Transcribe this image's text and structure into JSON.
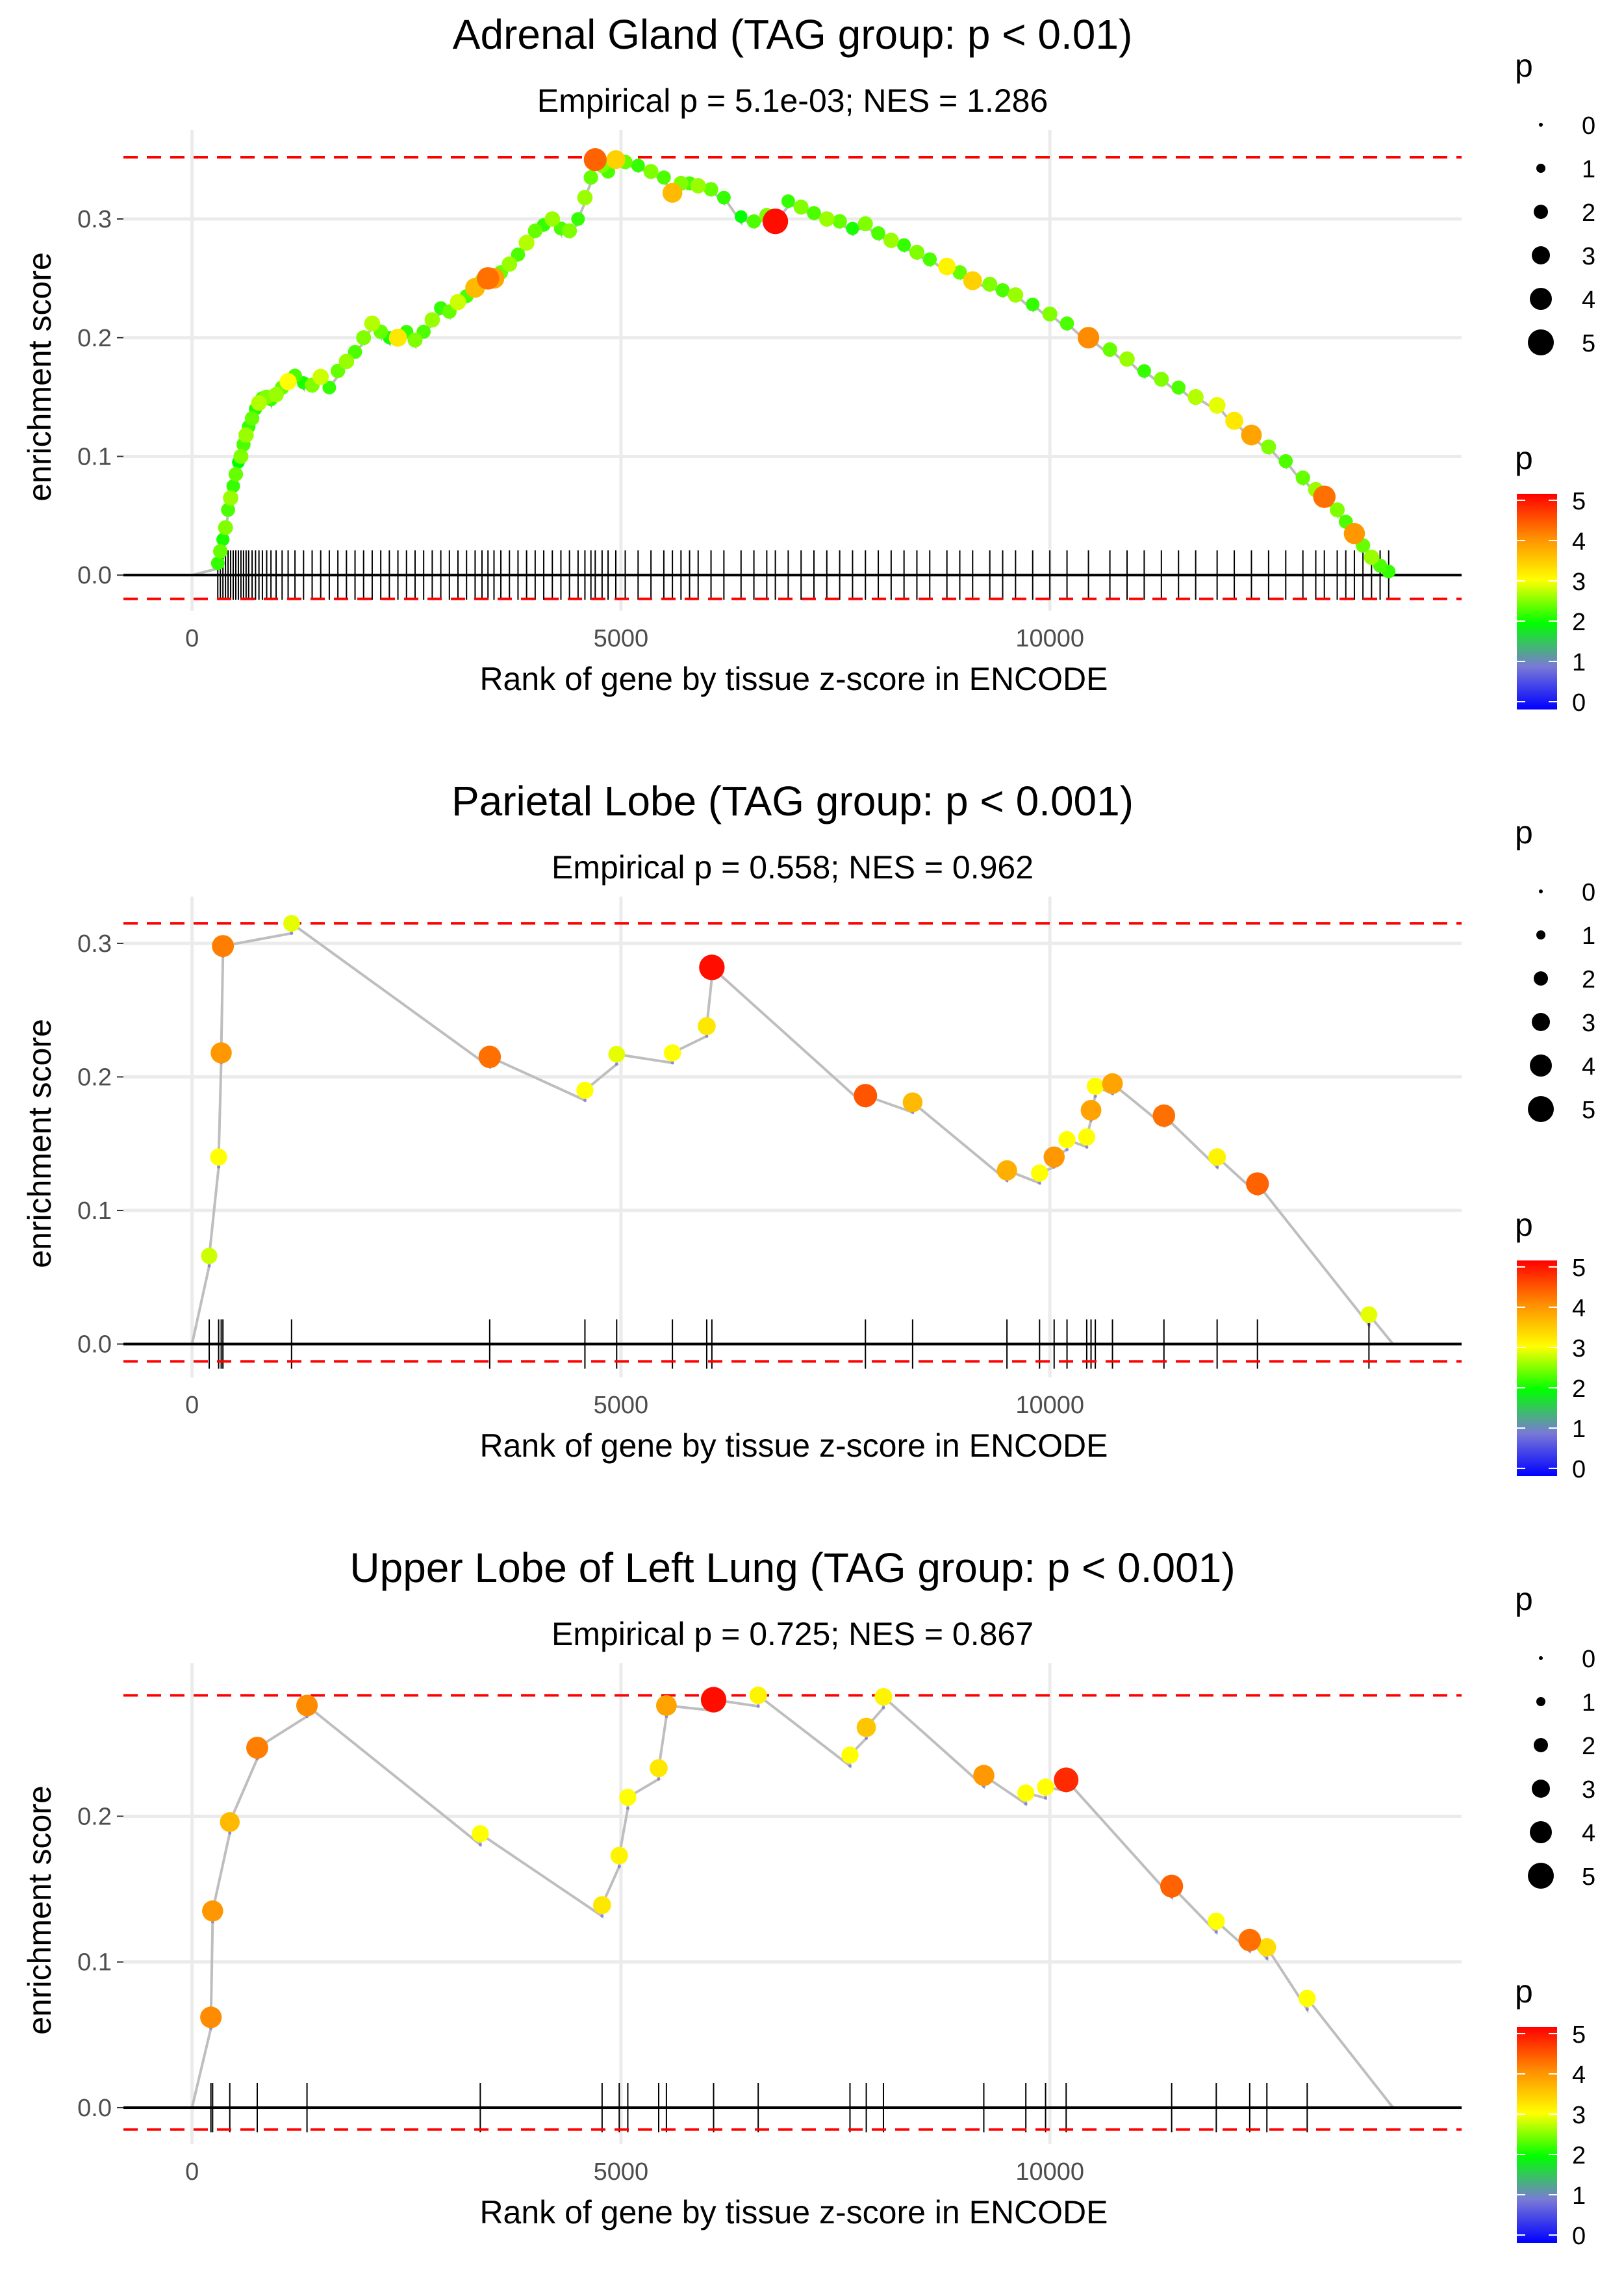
{
  "colors": {
    "grid": "#ebebeb",
    "axis_line": "#000000",
    "dashed": "#ff0000",
    "path": "#bebebe",
    "tick_text": "#4d4d4d",
    "text": "#000000",
    "gradient": [
      "#0000ff",
      "#00ff00",
      "#ffff00",
      "#ff0000"
    ]
  },
  "chart_data": [
    {
      "type": "scatter",
      "title": "Adrenal Gland (TAG group: p < 0.01)",
      "subtitle": "Empirical p = 5.1e-03; NES = 1.286",
      "xlabel": "Rank of gene by tissue z-score in ENCODE",
      "ylabel": "enrichment score",
      "xlim": [
        -800,
        14800
      ],
      "ylim": [
        -0.03,
        0.375
      ],
      "xticks": [
        0,
        5000,
        10000
      ],
      "xtick_labels": [
        "0",
        "5000",
        "10000"
      ],
      "yticks": [
        0.0,
        0.1,
        0.2,
        0.3
      ],
      "ytick_labels": [
        "0.0",
        "0.1",
        "0.2",
        "0.3"
      ],
      "x_end": 14000,
      "dashed_max": 0.352,
      "dashed_min": -0.02,
      "drop": 0.0045,
      "legend_size": {
        "title": "p",
        "labels": [
          "0",
          "1",
          "2",
          "3",
          "4",
          "5"
        ]
      },
      "legend_color": {
        "title": "p",
        "labels": [
          "0",
          "1",
          "2",
          "3",
          "4",
          "5"
        ]
      },
      "points": [
        {
          "x": 300,
          "y": 0.01,
          "p": 2.2
        },
        {
          "x": 330,
          "y": 0.02,
          "p": 2.4
        },
        {
          "x": 360,
          "y": 0.03,
          "p": 2.1
        },
        {
          "x": 390,
          "y": 0.04,
          "p": 2.5
        },
        {
          "x": 420,
          "y": 0.055,
          "p": 2.3
        },
        {
          "x": 450,
          "y": 0.065,
          "p": 2.6
        },
        {
          "x": 480,
          "y": 0.075,
          "p": 2.2
        },
        {
          "x": 510,
          "y": 0.085,
          "p": 2.4
        },
        {
          "x": 540,
          "y": 0.095,
          "p": 2.0
        },
        {
          "x": 570,
          "y": 0.1,
          "p": 2.5
        },
        {
          "x": 600,
          "y": 0.11,
          "p": 2.3
        },
        {
          "x": 630,
          "y": 0.118,
          "p": 2.6
        },
        {
          "x": 660,
          "y": 0.125,
          "p": 2.2
        },
        {
          "x": 700,
          "y": 0.132,
          "p": 2.4
        },
        {
          "x": 740,
          "y": 0.14,
          "p": 2.1
        },
        {
          "x": 780,
          "y": 0.145,
          "p": 2.7
        },
        {
          "x": 820,
          "y": 0.149,
          "p": 2.3
        },
        {
          "x": 870,
          "y": 0.15,
          "p": 2.5
        },
        {
          "x": 920,
          "y": 0.148,
          "p": 2.2
        },
        {
          "x": 980,
          "y": 0.152,
          "p": 2.6
        },
        {
          "x": 1050,
          "y": 0.158,
          "p": 2.4
        },
        {
          "x": 1120,
          "y": 0.163,
          "p": 3.0
        },
        {
          "x": 1200,
          "y": 0.168,
          "p": 2.3
        },
        {
          "x": 1300,
          "y": 0.162,
          "p": 2.1
        },
        {
          "x": 1400,
          "y": 0.16,
          "p": 2.5
        },
        {
          "x": 1500,
          "y": 0.167,
          "p": 2.8
        },
        {
          "x": 1600,
          "y": 0.158,
          "p": 2.2
        },
        {
          "x": 1700,
          "y": 0.172,
          "p": 2.4
        },
        {
          "x": 1800,
          "y": 0.18,
          "p": 2.6
        },
        {
          "x": 1900,
          "y": 0.188,
          "p": 2.3
        },
        {
          "x": 2000,
          "y": 0.2,
          "p": 2.5
        },
        {
          "x": 2100,
          "y": 0.212,
          "p": 2.7
        },
        {
          "x": 2200,
          "y": 0.205,
          "p": 2.4
        },
        {
          "x": 2300,
          "y": 0.2,
          "p": 2.1
        },
        {
          "x": 2400,
          "y": 0.2,
          "p": 3.2
        },
        {
          "x": 2500,
          "y": 0.205,
          "p": 2.2
        },
        {
          "x": 2600,
          "y": 0.198,
          "p": 2.5
        },
        {
          "x": 2700,
          "y": 0.205,
          "p": 2.3
        },
        {
          "x": 2800,
          "y": 0.215,
          "p": 2.6
        },
        {
          "x": 2900,
          "y": 0.225,
          "p": 2.2
        },
        {
          "x": 3000,
          "y": 0.222,
          "p": 2.4
        },
        {
          "x": 3100,
          "y": 0.23,
          "p": 2.8
        },
        {
          "x": 3200,
          "y": 0.235,
          "p": 2.3
        },
        {
          "x": 3300,
          "y": 0.242,
          "p": 3.6
        },
        {
          "x": 3380,
          "y": 0.248,
          "p": 2.5
        },
        {
          "x": 3450,
          "y": 0.25,
          "p": 4.2
        },
        {
          "x": 3520,
          "y": 0.25,
          "p": 3.8
        },
        {
          "x": 3600,
          "y": 0.255,
          "p": 2.4
        },
        {
          "x": 3700,
          "y": 0.262,
          "p": 2.6
        },
        {
          "x": 3800,
          "y": 0.27,
          "p": 2.3
        },
        {
          "x": 3900,
          "y": 0.28,
          "p": 2.7
        },
        {
          "x": 4000,
          "y": 0.29,
          "p": 2.4
        },
        {
          "x": 4100,
          "y": 0.295,
          "p": 2.2
        },
        {
          "x": 4200,
          "y": 0.3,
          "p": 2.6
        },
        {
          "x": 4300,
          "y": 0.292,
          "p": 2.3
        },
        {
          "x": 4400,
          "y": 0.29,
          "p": 2.5
        },
        {
          "x": 4500,
          "y": 0.3,
          "p": 2.2
        },
        {
          "x": 4580,
          "y": 0.318,
          "p": 2.6
        },
        {
          "x": 4650,
          "y": 0.335,
          "p": 2.4
        },
        {
          "x": 4700,
          "y": 0.35,
          "p": 4.3
        },
        {
          "x": 4780,
          "y": 0.345,
          "p": 2.5
        },
        {
          "x": 4850,
          "y": 0.34,
          "p": 2.3
        },
        {
          "x": 4940,
          "y": 0.35,
          "p": 3.4
        },
        {
          "x": 5050,
          "y": 0.348,
          "p": 2.4
        },
        {
          "x": 5200,
          "y": 0.345,
          "p": 2.2
        },
        {
          "x": 5350,
          "y": 0.34,
          "p": 2.5
        },
        {
          "x": 5500,
          "y": 0.335,
          "p": 2.3
        },
        {
          "x": 5600,
          "y": 0.322,
          "p": 3.6
        },
        {
          "x": 5700,
          "y": 0.33,
          "p": 2.5
        },
        {
          "x": 5800,
          "y": 0.33,
          "p": 2.3
        },
        {
          "x": 5900,
          "y": 0.328,
          "p": 2.6
        },
        {
          "x": 6050,
          "y": 0.325,
          "p": 2.4
        },
        {
          "x": 6200,
          "y": 0.318,
          "p": 2.2
        },
        {
          "x": 6400,
          "y": 0.302,
          "p": 2.0
        },
        {
          "x": 6550,
          "y": 0.298,
          "p": 2.3
        },
        {
          "x": 6700,
          "y": 0.303,
          "p": 2.5
        },
        {
          "x": 6800,
          "y": 0.298,
          "p": 4.9
        },
        {
          "x": 6950,
          "y": 0.315,
          "p": 2.2
        },
        {
          "x": 7100,
          "y": 0.31,
          "p": 2.5
        },
        {
          "x": 7250,
          "y": 0.305,
          "p": 2.3
        },
        {
          "x": 7400,
          "y": 0.3,
          "p": 2.6
        },
        {
          "x": 7550,
          "y": 0.298,
          "p": 2.4
        },
        {
          "x": 7700,
          "y": 0.292,
          "p": 2.1
        },
        {
          "x": 7850,
          "y": 0.296,
          "p": 2.5
        },
        {
          "x": 8000,
          "y": 0.288,
          "p": 2.3
        },
        {
          "x": 8150,
          "y": 0.282,
          "p": 2.6
        },
        {
          "x": 8300,
          "y": 0.278,
          "p": 2.2
        },
        {
          "x": 8450,
          "y": 0.272,
          "p": 2.5
        },
        {
          "x": 8600,
          "y": 0.266,
          "p": 2.3
        },
        {
          "x": 8800,
          "y": 0.26,
          "p": 3.1
        },
        {
          "x": 8950,
          "y": 0.255,
          "p": 2.4
        },
        {
          "x": 9100,
          "y": 0.248,
          "p": 3.4
        },
        {
          "x": 9300,
          "y": 0.245,
          "p": 2.5
        },
        {
          "x": 9450,
          "y": 0.24,
          "p": 2.3
        },
        {
          "x": 9600,
          "y": 0.236,
          "p": 2.6
        },
        {
          "x": 9800,
          "y": 0.228,
          "p": 2.2
        },
        {
          "x": 10000,
          "y": 0.22,
          "p": 2.5
        },
        {
          "x": 10200,
          "y": 0.212,
          "p": 2.3
        },
        {
          "x": 10450,
          "y": 0.2,
          "p": 4.0
        },
        {
          "x": 10700,
          "y": 0.19,
          "p": 2.4
        },
        {
          "x": 10900,
          "y": 0.182,
          "p": 2.6
        },
        {
          "x": 11100,
          "y": 0.172,
          "p": 2.2
        },
        {
          "x": 11300,
          "y": 0.165,
          "p": 2.5
        },
        {
          "x": 11500,
          "y": 0.158,
          "p": 2.3
        },
        {
          "x": 11700,
          "y": 0.15,
          "p": 2.7
        },
        {
          "x": 11950,
          "y": 0.143,
          "p": 2.9
        },
        {
          "x": 12150,
          "y": 0.13,
          "p": 3.2
        },
        {
          "x": 12350,
          "y": 0.118,
          "p": 3.8
        },
        {
          "x": 12550,
          "y": 0.108,
          "p": 2.5
        },
        {
          "x": 12750,
          "y": 0.096,
          "p": 2.3
        },
        {
          "x": 12950,
          "y": 0.082,
          "p": 2.4
        },
        {
          "x": 13100,
          "y": 0.072,
          "p": 2.6
        },
        {
          "x": 13200,
          "y": 0.066,
          "p": 4.2
        },
        {
          "x": 13350,
          "y": 0.055,
          "p": 2.5
        },
        {
          "x": 13450,
          "y": 0.045,
          "p": 2.3
        },
        {
          "x": 13550,
          "y": 0.035,
          "p": 3.9
        },
        {
          "x": 13650,
          "y": 0.025,
          "p": 2.4
        },
        {
          "x": 13750,
          "y": 0.015,
          "p": 2.6
        },
        {
          "x": 13850,
          "y": 0.008,
          "p": 2.3
        },
        {
          "x": 13950,
          "y": 0.003,
          "p": 2.2
        }
      ]
    },
    {
      "type": "scatter",
      "title": "Parietal Lobe (TAG group: p < 0.001)",
      "subtitle": "Empirical p = 0.558; NES = 0.962",
      "xlabel": "Rank of gene by tissue z-score in ENCODE",
      "ylabel": "enrichment score",
      "xlim": [
        -800,
        14800
      ],
      "ylim": [
        -0.025,
        0.335
      ],
      "xticks": [
        0,
        5000,
        10000
      ],
      "xtick_labels": [
        "0",
        "5000",
        "10000"
      ],
      "yticks": [
        0.0,
        0.1,
        0.2,
        0.3
      ],
      "ytick_labels": [
        "0.0",
        "0.1",
        "0.2",
        "0.3"
      ],
      "x_end": 14000,
      "dashed_max": 0.315,
      "dashed_min": -0.013,
      "drop": 0.0075,
      "legend_size": {
        "title": "p",
        "labels": [
          "0",
          "1",
          "2",
          "3",
          "4",
          "5"
        ]
      },
      "legend_color": {
        "title": "p",
        "labels": [
          "0",
          "1",
          "2",
          "3",
          "4",
          "5"
        ]
      },
      "points": [
        {
          "x": 200,
          "y": 0.066,
          "p": 2.8
        },
        {
          "x": 310,
          "y": 0.14,
          "p": 3.0
        },
        {
          "x": 340,
          "y": 0.218,
          "p": 3.9
        },
        {
          "x": 360,
          "y": 0.298,
          "p": 4.1
        },
        {
          "x": 1160,
          "y": 0.315,
          "p": 2.9
        },
        {
          "x": 3470,
          "y": 0.215,
          "p": 4.2
        },
        {
          "x": 4580,
          "y": 0.19,
          "p": 3.0
        },
        {
          "x": 4950,
          "y": 0.217,
          "p": 2.9
        },
        {
          "x": 5600,
          "y": 0.218,
          "p": 3.0
        },
        {
          "x": 6000,
          "y": 0.238,
          "p": 3.2
        },
        {
          "x": 6060,
          "y": 0.282,
          "p": 4.9
        },
        {
          "x": 7850,
          "y": 0.186,
          "p": 4.4
        },
        {
          "x": 8400,
          "y": 0.181,
          "p": 3.6
        },
        {
          "x": 9500,
          "y": 0.13,
          "p": 3.7
        },
        {
          "x": 9880,
          "y": 0.128,
          "p": 3.0
        },
        {
          "x": 10050,
          "y": 0.14,
          "p": 3.9
        },
        {
          "x": 10200,
          "y": 0.153,
          "p": 3.0
        },
        {
          "x": 10430,
          "y": 0.155,
          "p": 3.0
        },
        {
          "x": 10480,
          "y": 0.175,
          "p": 3.8
        },
        {
          "x": 10530,
          "y": 0.193,
          "p": 3.0
        },
        {
          "x": 10730,
          "y": 0.195,
          "p": 3.8
        },
        {
          "x": 11330,
          "y": 0.171,
          "p": 4.2
        },
        {
          "x": 11950,
          "y": 0.14,
          "p": 3.1
        },
        {
          "x": 12420,
          "y": 0.12,
          "p": 4.3
        },
        {
          "x": 13720,
          "y": 0.022,
          "p": 2.9
        }
      ]
    },
    {
      "type": "scatter",
      "title": "Upper Lobe of Left Lung (TAG group: p < 0.001)",
      "subtitle": "Empirical p = 0.725; NES = 0.867",
      "xlabel": "Rank of gene by tissue z-score in ENCODE",
      "ylabel": "enrichment score",
      "xlim": [
        -800,
        14800
      ],
      "ylim": [
        -0.025,
        0.305
      ],
      "xticks": [
        0,
        5000,
        10000
      ],
      "xtick_labels": [
        "0",
        "5000",
        "10000"
      ],
      "yticks": [
        0.0,
        0.1,
        0.2
      ],
      "ytick_labels": [
        "0.0",
        "0.1",
        "0.2"
      ],
      "x_end": 14000,
      "dashed_max": 0.283,
      "dashed_min": -0.015,
      "drop": 0.0075,
      "legend_size": {
        "title": "p",
        "labels": [
          "0",
          "1",
          "2",
          "3",
          "4",
          "5"
        ]
      },
      "legend_color": {
        "title": "p",
        "labels": [
          "0",
          "1",
          "2",
          "3",
          "4",
          "5"
        ]
      },
      "points": [
        {
          "x": 220,
          "y": 0.062,
          "p": 4.0
        },
        {
          "x": 240,
          "y": 0.135,
          "p": 3.9
        },
        {
          "x": 440,
          "y": 0.196,
          "p": 3.6
        },
        {
          "x": 760,
          "y": 0.247,
          "p": 4.1
        },
        {
          "x": 1340,
          "y": 0.276,
          "p": 4.0
        },
        {
          "x": 3360,
          "y": 0.188,
          "p": 3.0
        },
        {
          "x": 4780,
          "y": 0.139,
          "p": 3.2
        },
        {
          "x": 4980,
          "y": 0.173,
          "p": 3.1
        },
        {
          "x": 5080,
          "y": 0.213,
          "p": 3.0
        },
        {
          "x": 5440,
          "y": 0.233,
          "p": 3.2
        },
        {
          "x": 5530,
          "y": 0.276,
          "p": 3.8
        },
        {
          "x": 6080,
          "y": 0.28,
          "p": 4.9
        },
        {
          "x": 6600,
          "y": 0.283,
          "p": 3.1
        },
        {
          "x": 7670,
          "y": 0.242,
          "p": 3.0
        },
        {
          "x": 7860,
          "y": 0.261,
          "p": 3.5
        },
        {
          "x": 8060,
          "y": 0.282,
          "p": 3.1
        },
        {
          "x": 9230,
          "y": 0.228,
          "p": 3.9
        },
        {
          "x": 9720,
          "y": 0.216,
          "p": 3.0
        },
        {
          "x": 9950,
          "y": 0.22,
          "p": 3.0
        },
        {
          "x": 10190,
          "y": 0.225,
          "p": 4.7
        },
        {
          "x": 11420,
          "y": 0.152,
          "p": 4.3
        },
        {
          "x": 11940,
          "y": 0.128,
          "p": 3.0
        },
        {
          "x": 12330,
          "y": 0.115,
          "p": 4.2
        },
        {
          "x": 12530,
          "y": 0.11,
          "p": 3.3
        },
        {
          "x": 13000,
          "y": 0.075,
          "p": 3.0
        }
      ]
    }
  ]
}
